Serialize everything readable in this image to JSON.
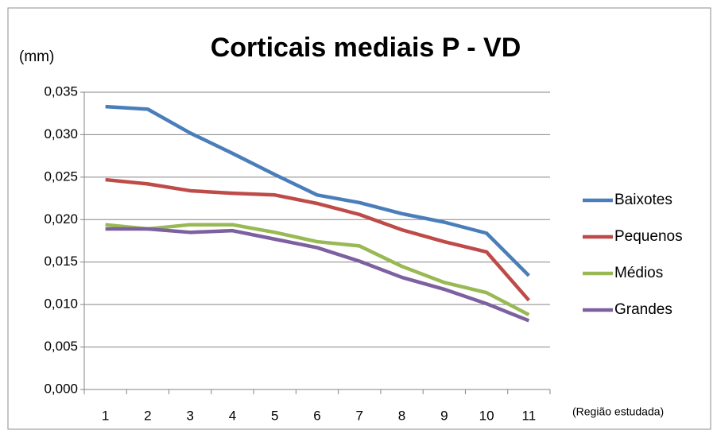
{
  "chart_data": {
    "type": "line",
    "title": "Corticais mediais P - VD",
    "ylabel": "(mm)",
    "xlabel": "(Região estudada)",
    "categories": [
      "1",
      "2",
      "3",
      "4",
      "5",
      "6",
      "7",
      "8",
      "9",
      "10",
      "11"
    ],
    "series": [
      {
        "name": "Baixotes",
        "color": "#4a7ebb",
        "values": [
          0.0333,
          0.033,
          0.0302,
          0.0278,
          0.0253,
          0.0229,
          0.022,
          0.0207,
          0.0197,
          0.0184,
          0.0134
        ]
      },
      {
        "name": "Pequenos",
        "color": "#be4b48",
        "values": [
          0.0247,
          0.0242,
          0.0234,
          0.0231,
          0.0229,
          0.0219,
          0.0206,
          0.0188,
          0.0174,
          0.0162,
          0.0105
        ]
      },
      {
        "name": "Médios",
        "color": "#98b954",
        "values": [
          0.0194,
          0.0189,
          0.0194,
          0.0194,
          0.0185,
          0.0174,
          0.0169,
          0.0145,
          0.0126,
          0.0114,
          0.0088
        ]
      },
      {
        "name": "Grandes",
        "color": "#7d60a0",
        "values": [
          0.0189,
          0.0189,
          0.0185,
          0.0187,
          0.0177,
          0.0167,
          0.0151,
          0.0132,
          0.0118,
          0.0101,
          0.0081
        ]
      }
    ],
    "ylim": [
      0,
      0.035
    ],
    "yticks": [
      {
        "value": 0,
        "label": "0,000"
      },
      {
        "value": 0.005,
        "label": "0,005"
      },
      {
        "value": 0.01,
        "label": "0,010"
      },
      {
        "value": 0.015,
        "label": "0,015"
      },
      {
        "value": 0.02,
        "label": "0,020"
      },
      {
        "value": 0.025,
        "label": "0,025"
      },
      {
        "value": 0.03,
        "label": "0,030"
      },
      {
        "value": 0.035,
        "label": "0,035"
      }
    ],
    "grid": true,
    "legend": "right"
  }
}
